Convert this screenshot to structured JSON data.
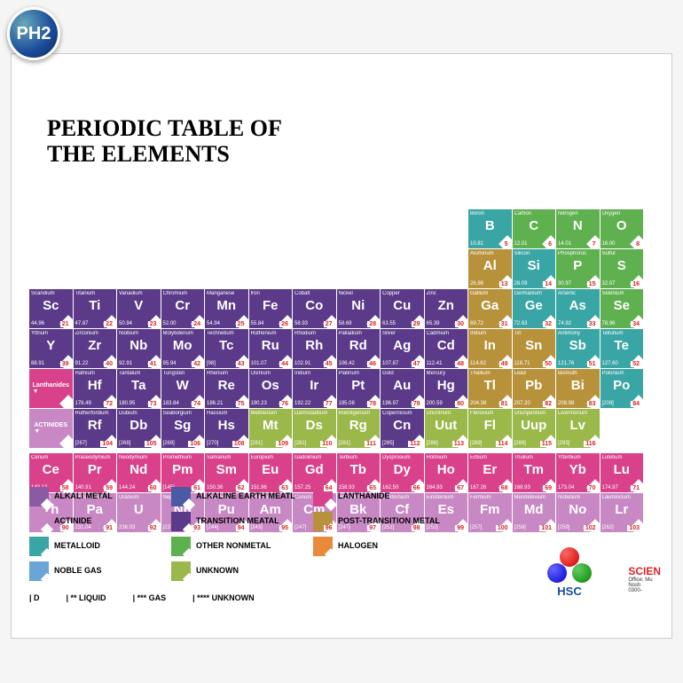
{
  "badge": "PH2",
  "title_l1": "PERIODIC TABLE OF",
  "title_l2": "THE ELEMENTS",
  "colors": {
    "transition": "#5b3a8a",
    "posttrans": "#b8923a",
    "metalloid": "#3aa5a5",
    "nonmetal": "#5fb04f",
    "lanthanide": "#d9428a",
    "actinide": "#c888c4",
    "unknown": "#9bb84a",
    "halogen": "#e88a3a",
    "alkali": "#8a5aa5",
    "alkaline": "#4a5aa5",
    "noble": "#6aa5d5"
  },
  "rows": [
    [
      {
        "spacer": 10
      },
      {
        "nm": "Boron",
        "sym": "B",
        "mass": "10.81",
        "num": "5",
        "c": "metalloid"
      },
      {
        "nm": "Carbon",
        "sym": "C",
        "mass": "12.01",
        "num": "6",
        "c": "nonmetal"
      },
      {
        "nm": "Nitrogen",
        "sym": "N",
        "mass": "14.01",
        "num": "7",
        "c": "nonmetal"
      },
      {
        "nm": "Oxygen",
        "sym": "O",
        "mass": "16.00",
        "num": "8",
        "c": "nonmetal"
      }
    ],
    [
      {
        "spacer": 10
      },
      {
        "nm": "Aluminum",
        "sym": "Al",
        "mass": "26.98",
        "num": "13",
        "c": "posttrans"
      },
      {
        "nm": "Silicon",
        "sym": "Si",
        "mass": "28.09",
        "num": "14",
        "c": "metalloid"
      },
      {
        "nm": "Phosphorus",
        "sym": "P",
        "mass": "30.97",
        "num": "15",
        "c": "nonmetal"
      },
      {
        "nm": "Sulfur",
        "sym": "S",
        "mass": "32.07",
        "num": "16",
        "c": "nonmetal"
      }
    ],
    [
      {
        "nm": "Scandium",
        "sym": "Sc",
        "mass": "44.96",
        "num": "21",
        "c": "transition"
      },
      {
        "nm": "Titanium",
        "sym": "Ti",
        "mass": "47.87",
        "num": "22",
        "c": "transition"
      },
      {
        "nm": "Vanadium",
        "sym": "V",
        "mass": "50.94",
        "num": "23",
        "c": "transition"
      },
      {
        "nm": "Chromium",
        "sym": "Cr",
        "mass": "52.00",
        "num": "24",
        "c": "transition"
      },
      {
        "nm": "Manganese",
        "sym": "Mn",
        "mass": "54.94",
        "num": "25",
        "c": "transition"
      },
      {
        "nm": "Iron",
        "sym": "Fe",
        "mass": "55.84",
        "num": "26",
        "c": "transition"
      },
      {
        "nm": "Cobalt",
        "sym": "Co",
        "mass": "58.93",
        "num": "27",
        "c": "transition"
      },
      {
        "nm": "Nickel",
        "sym": "Ni",
        "mass": "58.69",
        "num": "28",
        "c": "transition"
      },
      {
        "nm": "Copper",
        "sym": "Cu",
        "mass": "63.55",
        "num": "29",
        "c": "transition"
      },
      {
        "nm": "Zinc",
        "sym": "Zn",
        "mass": "65.39",
        "num": "30",
        "c": "transition"
      },
      {
        "nm": "Gallium",
        "sym": "Ga",
        "mass": "69.72",
        "num": "31",
        "c": "posttrans"
      },
      {
        "nm": "Germanium",
        "sym": "Ge",
        "mass": "72.63",
        "num": "32",
        "c": "metalloid"
      },
      {
        "nm": "Arsenic",
        "sym": "As",
        "mass": "74.92",
        "num": "33",
        "c": "metalloid"
      },
      {
        "nm": "Selenium",
        "sym": "Se",
        "mass": "78.96",
        "num": "34",
        "c": "nonmetal"
      }
    ],
    [
      {
        "nm": "Yttrium",
        "sym": "Y",
        "mass": "88.91",
        "num": "39",
        "c": "transition"
      },
      {
        "nm": "Zirconium",
        "sym": "Zr",
        "mass": "91.22",
        "num": "40",
        "c": "transition"
      },
      {
        "nm": "Niobium",
        "sym": "Nb",
        "mass": "92.91",
        "num": "41",
        "c": "transition"
      },
      {
        "nm": "Molybdenum",
        "sym": "Mo",
        "mass": "95.94",
        "num": "42",
        "c": "transition"
      },
      {
        "nm": "Technetium",
        "sym": "Tc",
        "mass": "[98]",
        "num": "43",
        "c": "transition"
      },
      {
        "nm": "Ruthenium",
        "sym": "Ru",
        "mass": "101.07",
        "num": "44",
        "c": "transition"
      },
      {
        "nm": "Rhodium",
        "sym": "Rh",
        "mass": "102.91",
        "num": "45",
        "c": "transition"
      },
      {
        "nm": "Palladium",
        "sym": "Rd",
        "mass": "106.42",
        "num": "46",
        "c": "transition"
      },
      {
        "nm": "Silver",
        "sym": "Ag",
        "mass": "107.87",
        "num": "47",
        "c": "transition"
      },
      {
        "nm": "Cadmium",
        "sym": "Cd",
        "mass": "112.41",
        "num": "48",
        "c": "transition"
      },
      {
        "nm": "Indium",
        "sym": "In",
        "mass": "114.82",
        "num": "49",
        "c": "posttrans"
      },
      {
        "nm": "Tin",
        "sym": "Sn",
        "mass": "118.71",
        "num": "50",
        "c": "posttrans"
      },
      {
        "nm": "Antimony",
        "sym": "Sb",
        "mass": "121.76",
        "num": "51",
        "c": "metalloid"
      },
      {
        "nm": "Tellurium",
        "sym": "Te",
        "mass": "127.60",
        "num": "52",
        "c": "metalloid"
      }
    ],
    [
      {
        "label": "Lanthanides",
        "c": "lanthanide"
      },
      {
        "nm": "Hafnium",
        "sym": "Hf",
        "mass": "178.49",
        "num": "72",
        "c": "transition"
      },
      {
        "nm": "Tantalum",
        "sym": "Ta",
        "mass": "180.95",
        "num": "73",
        "c": "transition"
      },
      {
        "nm": "Tungsten",
        "sym": "W",
        "mass": "183.84",
        "num": "74",
        "c": "transition"
      },
      {
        "nm": "Rhenium",
        "sym": "Re",
        "mass": "186.21",
        "num": "75",
        "c": "transition"
      },
      {
        "nm": "Osmium",
        "sym": "Os",
        "mass": "190.23",
        "num": "76",
        "c": "transition"
      },
      {
        "nm": "Iridium",
        "sym": "Ir",
        "mass": "192.22",
        "num": "77",
        "c": "transition"
      },
      {
        "nm": "Platinum",
        "sym": "Pt",
        "mass": "195.08",
        "num": "78",
        "c": "transition"
      },
      {
        "nm": "Gold",
        "sym": "Au",
        "mass": "196.97",
        "num": "79",
        "c": "transition"
      },
      {
        "nm": "Mercury",
        "sym": "Hg",
        "mass": "200.59",
        "num": "80",
        "c": "transition"
      },
      {
        "nm": "Thallium",
        "sym": "Tl",
        "mass": "204.38",
        "num": "81",
        "c": "posttrans"
      },
      {
        "nm": "Lead",
        "sym": "Pb",
        "mass": "207.20",
        "num": "82",
        "c": "posttrans"
      },
      {
        "nm": "Bismuth",
        "sym": "Bi",
        "mass": "208.98",
        "num": "83",
        "c": "posttrans"
      },
      {
        "nm": "Polonium",
        "sym": "Po",
        "mass": "[209]",
        "num": "84",
        "c": "metalloid"
      }
    ],
    [
      {
        "label": "ACTINIDES",
        "c": "actinide"
      },
      {
        "nm": "Rutherfordium",
        "sym": "Rf",
        "mass": "[267]",
        "num": "104",
        "c": "transition"
      },
      {
        "nm": "Dubium",
        "sym": "Db",
        "mass": "[268]",
        "num": "105",
        "c": "transition"
      },
      {
        "nm": "Seaborgium",
        "sym": "Sg",
        "mass": "[269]",
        "num": "106",
        "c": "transition"
      },
      {
        "nm": "Hassium",
        "sym": "Hs",
        "mass": "[270]",
        "num": "108",
        "c": "transition"
      },
      {
        "nm": "Meitnerium",
        "sym": "Mt",
        "mass": "[281]",
        "num": "109",
        "c": "unknown"
      },
      {
        "nm": "Darmstadtium",
        "sym": "Ds",
        "mass": "[281]",
        "num": "110",
        "c": "unknown"
      },
      {
        "nm": "Roentgenium",
        "sym": "Rg",
        "mass": "[281]",
        "num": "111",
        "c": "unknown"
      },
      {
        "nm": "Copernicium",
        "sym": "Cn",
        "mass": "[285]",
        "num": "112",
        "c": "transition"
      },
      {
        "nm": "Ununtrium",
        "sym": "Uut",
        "mass": "[286]",
        "num": "113",
        "c": "unknown"
      },
      {
        "nm": "Flerovium",
        "sym": "Fl",
        "mass": "[289]",
        "num": "114",
        "c": "unknown"
      },
      {
        "nm": "Ununpentium",
        "sym": "Uup",
        "mass": "[289]",
        "num": "115",
        "c": "unknown"
      },
      {
        "nm": "Livermorium",
        "sym": "Lv",
        "mass": "[293]",
        "num": "116",
        "c": "unknown"
      }
    ]
  ],
  "frows": [
    [
      {
        "nm": "Cerium",
        "sym": "Ce",
        "mass": "140.12",
        "num": "58",
        "c": "lanthanide"
      },
      {
        "nm": "Praseodymium",
        "sym": "Pr",
        "mass": "140.91",
        "num": "59",
        "c": "lanthanide"
      },
      {
        "nm": "Neodymium",
        "sym": "Nd",
        "mass": "144.24",
        "num": "60",
        "c": "lanthanide"
      },
      {
        "nm": "Promethium",
        "sym": "Pm",
        "mass": "[145]",
        "num": "61",
        "c": "lanthanide"
      },
      {
        "nm": "Samarium",
        "sym": "Sm",
        "mass": "150.36",
        "num": "62",
        "c": "lanthanide"
      },
      {
        "nm": "Europium",
        "sym": "Eu",
        "mass": "151.96",
        "num": "63",
        "c": "lanthanide"
      },
      {
        "nm": "Gadolinium",
        "sym": "Gd",
        "mass": "157.25",
        "num": "64",
        "c": "lanthanide"
      },
      {
        "nm": "Terbium",
        "sym": "Tb",
        "mass": "158.93",
        "num": "65",
        "c": "lanthanide"
      },
      {
        "nm": "Dysprosium",
        "sym": "Dy",
        "mass": "162.50",
        "num": "66",
        "c": "lanthanide"
      },
      {
        "nm": "Holmium",
        "sym": "Ho",
        "mass": "164.93",
        "num": "67",
        "c": "lanthanide"
      },
      {
        "nm": "Erbium",
        "sym": "Er",
        "mass": "167.26",
        "num": "68",
        "c": "lanthanide"
      },
      {
        "nm": "Thulium",
        "sym": "Tm",
        "mass": "168.93",
        "num": "69",
        "c": "lanthanide"
      },
      {
        "nm": "Ytterbium",
        "sym": "Yb",
        "mass": "173.04",
        "num": "70",
        "c": "lanthanide"
      },
      {
        "nm": "Lutetium",
        "sym": "Lu",
        "mass": "174.97",
        "num": "71",
        "c": "lanthanide"
      }
    ],
    [
      {
        "nm": "Thorium",
        "sym": "Th",
        "mass": "232.04",
        "num": "90",
        "c": "actinide"
      },
      {
        "nm": "Protactinium",
        "sym": "Pa",
        "mass": "231.04",
        "num": "91",
        "c": "actinide"
      },
      {
        "nm": "Uranium",
        "sym": "U",
        "mass": "238.03",
        "num": "92",
        "c": "actinide"
      },
      {
        "nm": "Neptunium",
        "sym": "Np",
        "mass": "[237]",
        "num": "93",
        "c": "actinide"
      },
      {
        "nm": "Plutonium",
        "sym": "Pu",
        "mass": "[244]",
        "num": "94",
        "c": "actinide"
      },
      {
        "nm": "Americium",
        "sym": "Am",
        "mass": "[243]",
        "num": "95",
        "c": "actinide"
      },
      {
        "nm": "Curium",
        "sym": "Cm",
        "mass": "[247]",
        "num": "96",
        "c": "actinide"
      },
      {
        "nm": "Berkelium",
        "sym": "Bk",
        "mass": "[247]",
        "num": "97",
        "c": "actinide"
      },
      {
        "nm": "Californium",
        "sym": "Cf",
        "mass": "[251]",
        "num": "98",
        "c": "actinide"
      },
      {
        "nm": "Einsteinium",
        "sym": "Es",
        "mass": "[252]",
        "num": "99",
        "c": "actinide"
      },
      {
        "nm": "Fermium",
        "sym": "Fm",
        "mass": "[257]",
        "num": "100",
        "c": "actinide"
      },
      {
        "nm": "Mendelevium",
        "sym": "Md",
        "mass": "[258]",
        "num": "101",
        "c": "actinide"
      },
      {
        "nm": "Nobelium",
        "sym": "No",
        "mass": "[259]",
        "num": "102",
        "c": "actinide"
      },
      {
        "nm": "Lawrencium",
        "sym": "Lr",
        "mass": "[262]",
        "num": "103",
        "c": "actinide"
      }
    ]
  ],
  "legend": [
    {
      "c": "alkali",
      "t": "ALKALI METAL"
    },
    {
      "c": "alkaline",
      "t": "ALKALINE EARTH MEATL"
    },
    {
      "c": "lanthanide",
      "t": "LANTHANIDE"
    },
    {
      "c": "actinide",
      "t": "ACTINIDE"
    },
    {
      "c": "transition",
      "t": "TRANSITION MEATAL"
    },
    {
      "c": "posttrans",
      "t": "POST-TRANSITION METAL"
    },
    {
      "c": "metalloid",
      "t": "METALLOID"
    },
    {
      "c": "nonmetal",
      "t": "OTHER NONMETAL"
    },
    {
      "c": "halogen",
      "t": "HALOGEN"
    },
    {
      "c": "noble",
      "t": "NOBLE GAS"
    },
    {
      "c": "unknown",
      "t": "UNKNOWN"
    }
  ],
  "states": [
    "D",
    "** LIQUID",
    "*** GAS",
    "**** UNKNOWN"
  ],
  "hsc": "HSC",
  "sci": {
    "l1": "SCIEN",
    "l2": "Office: Mu",
    "l3": "Nosh",
    "l4": "0300-"
  }
}
